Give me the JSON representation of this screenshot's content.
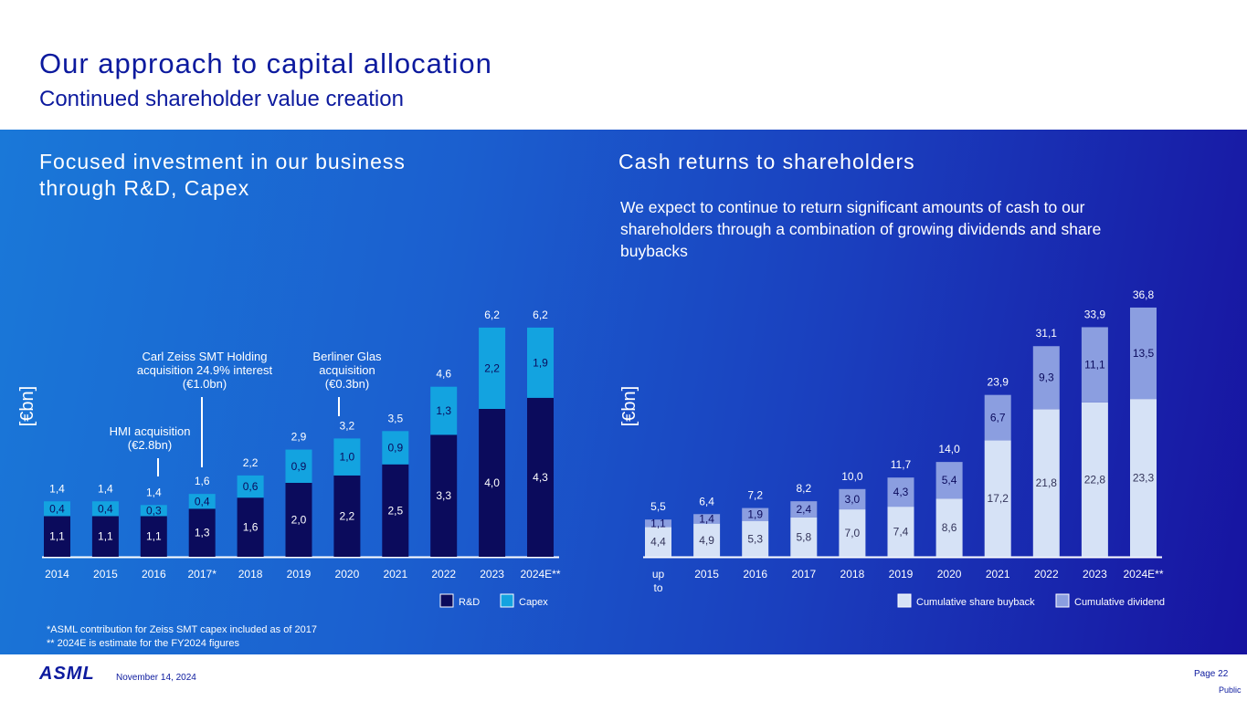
{
  "header": {
    "title": "Our approach to capital allocation",
    "subtitle": "Continued shareholder value creation"
  },
  "left": {
    "heading_line1": "Focused investment in our business",
    "heading_line2": "through R&D, Capex"
  },
  "right": {
    "heading": "Cash returns to shareholders",
    "intro": "We expect to continue to return significant amounts of cash to our shareholders through a combination of growing dividends and share buybacks"
  },
  "colors": {
    "rd": "#0b0b5c",
    "capex": "#13a3e0",
    "buyback": "#d6e2f6",
    "dividend": "#8b9ee0",
    "brand": "#0c1a9e"
  },
  "chart_data": [
    {
      "type": "bar",
      "stacked": true,
      "title": "Focused investment in our business through R&D, Capex",
      "ylabel": "[€bn]",
      "ylim": [
        0,
        6.5
      ],
      "categories": [
        "2014",
        "2015",
        "2016",
        "2017*",
        "2018",
        "2019",
        "2020",
        "2021",
        "2022",
        "2023",
        "2024E**"
      ],
      "series": [
        {
          "name": "R&D",
          "values": [
            1.1,
            1.1,
            1.1,
            1.3,
            1.6,
            2.0,
            2.2,
            2.5,
            3.3,
            4.0,
            4.3
          ],
          "labels": [
            "1,1",
            "1,1",
            "1,1",
            "1,3",
            "1,6",
            "2,0",
            "2,2",
            "2,5",
            "3,3",
            "4,0",
            "4,3"
          ]
        },
        {
          "name": "Capex",
          "values": [
            0.4,
            0.4,
            0.3,
            0.4,
            0.6,
            0.9,
            1.0,
            0.9,
            1.3,
            2.2,
            1.9
          ],
          "labels": [
            "0,4",
            "0,4",
            "0,3",
            "0,4",
            "0,6",
            "0,9",
            "1,0",
            "0,9",
            "1,3",
            "2,2",
            "1,9"
          ]
        }
      ],
      "totals": [
        "1,4",
        "1,4",
        "1,4",
        "1,6",
        "2,2",
        "2,9",
        "3,2",
        "3,5",
        "4,6",
        "6,2",
        "6,2"
      ],
      "annotations": [
        {
          "after_category": "2016",
          "lines": [
            "HMI acquisition",
            "(€2.8bn)"
          ]
        },
        {
          "after_category": "2017*",
          "lines": [
            "Carl Zeiss SMT Holding",
            "acquisition 24.9% interest",
            "(€1.0bn)"
          ]
        },
        {
          "after_category": "2019",
          "lines": [
            "Berliner Glas",
            "acquisition",
            "(€0.3bn)"
          ]
        }
      ],
      "legend": [
        "R&D",
        "Capex"
      ],
      "legend_position": "bottom-right"
    },
    {
      "type": "bar",
      "stacked": true,
      "title": "Cash returns to shareholders",
      "ylabel": "[€bn]",
      "ylim": [
        0,
        38
      ],
      "categories": [
        "up to 2014",
        "2015",
        "2016",
        "2017",
        "2018",
        "2019",
        "2020",
        "2021",
        "2022",
        "2023",
        "2024E**"
      ],
      "series": [
        {
          "name": "Cumulative share buyback",
          "values": [
            4.4,
            4.9,
            5.3,
            5.8,
            7.0,
            7.4,
            8.6,
            17.2,
            21.8,
            22.8,
            23.3
          ],
          "labels": [
            "4,4",
            "4,9",
            "5,3",
            "5,8",
            "7,0",
            "7,4",
            "8,6",
            "17,2",
            "21,8",
            "22,8",
            "23,3"
          ]
        },
        {
          "name": "Cumulative dividend",
          "values": [
            1.1,
            1.4,
            1.9,
            2.4,
            3.0,
            4.3,
            5.4,
            6.7,
            9.3,
            11.1,
            13.5
          ],
          "labels": [
            "1,1",
            "1,4",
            "1,9",
            "2,4",
            "3,0",
            "4,3",
            "5,4",
            "6,7",
            "9,3",
            "11,1",
            "13,5"
          ]
        }
      ],
      "totals": [
        "5,5",
        "6,4",
        "7,2",
        "8,2",
        "10,0",
        "11,7",
        "14,0",
        "23,9",
        "31,1",
        "33,9",
        "36,8"
      ],
      "legend": [
        "Cumulative share buyback",
        "Cumulative dividend"
      ],
      "legend_position": "bottom-right"
    }
  ],
  "footnotes": {
    "note1": "*ASML contribution for Zeiss SMT capex included as of 2017",
    "note2": "** 2024E is estimate for the FY2024 figures"
  },
  "footer": {
    "logo": "ASML",
    "date": "November 14, 2024",
    "page": "Page 22",
    "classification": "Public"
  }
}
